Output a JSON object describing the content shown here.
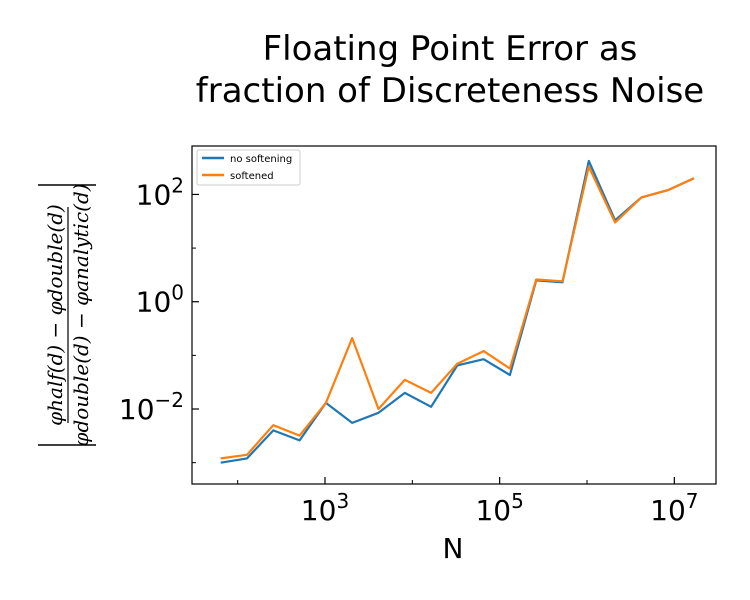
{
  "chart_data": {
    "type": "line",
    "title_lines": [
      "Floating Point Error as",
      "fraction of Discreteness Noise"
    ],
    "xlabel": "N",
    "ylabel": {
      "numerator": "φhalf(d) − φdouble(d)",
      "denominator": "φdouble(d) − φanalytic(d)"
    },
    "x_scale": "log",
    "y_scale": "log",
    "xlim": [
      30,
      30000000
    ],
    "ylim": [
      0.0004,
      800
    ],
    "x_ticks": [
      {
        "value": 1000,
        "base": "10",
        "exp": "3"
      },
      {
        "value": 100000,
        "base": "10",
        "exp": "5"
      },
      {
        "value": 10000000,
        "base": "10",
        "exp": "7"
      }
    ],
    "y_ticks": [
      {
        "value": 0.01,
        "base": "10",
        "exp": "−2"
      },
      {
        "value": 1,
        "base": "10",
        "exp": "0"
      },
      {
        "value": 100,
        "base": "10",
        "exp": "2"
      }
    ],
    "grid": false,
    "legend_position": "top-left",
    "x": [
      64,
      128,
      256,
      512,
      1024,
      2048,
      4096,
      8192,
      16384,
      32768,
      65536,
      131072,
      262144,
      524288,
      1048576,
      2097152,
      4194304,
      8388608,
      16777216
    ],
    "series": [
      {
        "name": "no softening",
        "color": "#1f77b4",
        "values": [
          0.001,
          0.0012,
          0.004,
          0.0026,
          0.013,
          0.0055,
          0.0085,
          0.02,
          0.011,
          0.065,
          0.085,
          0.043,
          2.5,
          2.3,
          420,
          33,
          88,
          120,
          200
        ]
      },
      {
        "name": "softened",
        "color": "#ff7f0e",
        "values": [
          0.0012,
          0.0014,
          0.005,
          0.0032,
          0.013,
          0.21,
          0.01,
          0.035,
          0.02,
          0.07,
          0.12,
          0.057,
          2.6,
          2.4,
          330,
          30,
          88,
          120,
          200
        ]
      }
    ]
  }
}
